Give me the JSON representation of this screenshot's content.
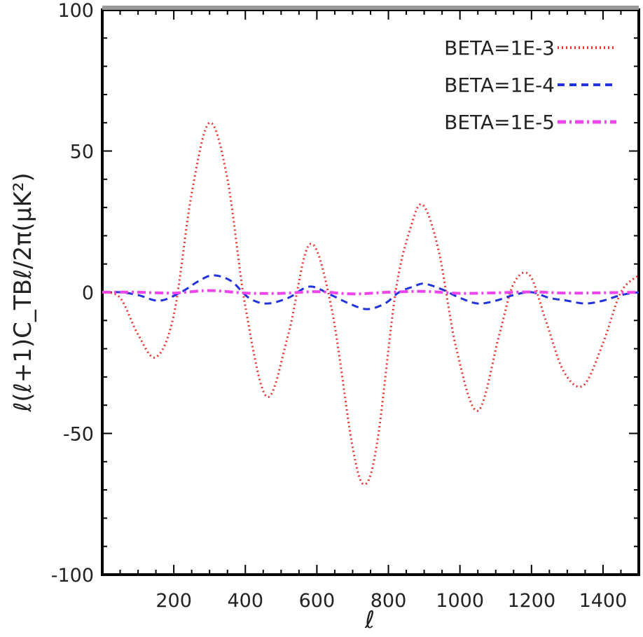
{
  "chart_data": {
    "type": "line",
    "xlabel": "ℓ",
    "ylabel": "ℓ(ℓ+1)C_TBℓ/2π(μK²)",
    "xlim": [
      0,
      1500
    ],
    "ylim": [
      -100,
      100
    ],
    "xticks": [
      200,
      400,
      600,
      800,
      1000,
      1200,
      1400
    ],
    "yticks": [
      100,
      50,
      0,
      -50,
      -100
    ],
    "grid": false,
    "legend_position": "top-right",
    "series": [
      {
        "name": "BETA=1E-3",
        "color": "#ee3333",
        "dash": "dotted",
        "x": [
          0,
          50,
          100,
          150,
          200,
          250,
          300,
          350,
          400,
          460,
          520,
          580,
          640,
          700,
          735,
          770,
          820,
          860,
          895,
          940,
          990,
          1050,
          1110,
          1150,
          1195,
          1240,
          1290,
          1345,
          1400,
          1450,
          1500
        ],
        "y": [
          0,
          -2,
          -15,
          -23,
          -8,
          35,
          60,
          40,
          -5,
          -37,
          -15,
          17,
          -5,
          -55,
          -68,
          -52,
          0,
          22,
          31,
          15,
          -20,
          -42,
          -15,
          3,
          6,
          -10,
          -28,
          -33,
          -18,
          0,
          6
        ]
      },
      {
        "name": "BETA=1E-4",
        "color": "#2233dd",
        "dash": "dashed",
        "x": [
          0,
          50,
          100,
          160,
          220,
          270,
          310,
          360,
          410,
          460,
          520,
          580,
          640,
          690,
          740,
          790,
          830,
          870,
          900,
          950,
          1000,
          1050,
          1100,
          1150,
          1200,
          1250,
          1300,
          1350,
          1400,
          1450,
          1500
        ],
        "y": [
          0,
          0,
          -1,
          -3,
          0,
          4,
          6,
          4,
          -2,
          -4,
          -2,
          2,
          -1,
          -4,
          -6,
          -4,
          0,
          2,
          3,
          1,
          -2,
          -4,
          -3,
          -1,
          0,
          -2,
          -3,
          -4,
          -3,
          -1,
          0
        ]
      },
      {
        "name": "BETA=1E-5",
        "color": "#ee44ee",
        "dash": "dashdot",
        "x": [
          0,
          100,
          200,
          300,
          400,
          500,
          600,
          700,
          800,
          900,
          1000,
          1100,
          1200,
          1300,
          1400,
          1500
        ],
        "y": [
          0,
          0,
          -0.3,
          0.6,
          -0.3,
          -0.4,
          0.2,
          -0.6,
          0,
          0.3,
          -0.4,
          -0.2,
          0.1,
          -0.3,
          -0.2,
          0
        ]
      }
    ]
  }
}
